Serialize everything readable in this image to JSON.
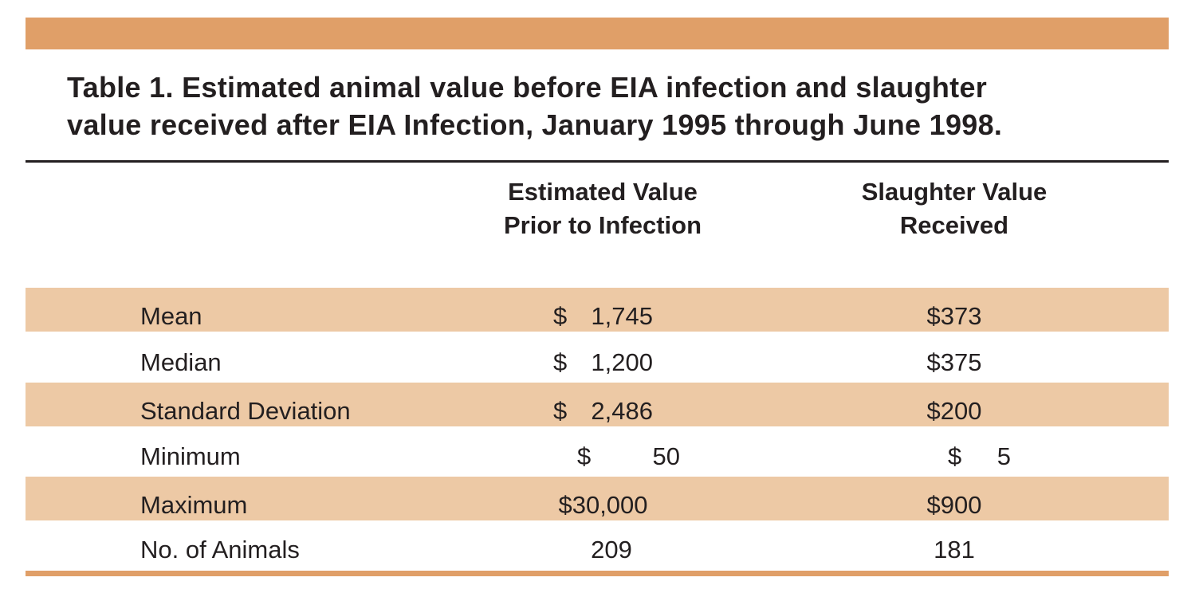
{
  "colors": {
    "band": "#e09f68",
    "shaded_row": "#edc9a5",
    "text": "#231f20"
  },
  "title": {
    "line1": "Table 1.  Estimated animal value before EIA infection and slaughter",
    "line2": "value received after EIA Infection, January 1995 through June 1998."
  },
  "columns": {
    "estimated": {
      "line1": "Estimated Value",
      "line2": "Prior to Infection"
    },
    "slaughter": {
      "line1": "Slaughter Value",
      "line2": "Received"
    }
  },
  "rows": [
    {
      "label": "Mean",
      "est_cur": "$",
      "est_amt": "1,745",
      "sla": "$373"
    },
    {
      "label": "Median",
      "est_cur": "$",
      "est_amt": "1,200",
      "sla": "$375"
    },
    {
      "label": "Standard Deviation",
      "est_cur": "$",
      "est_amt": "2,486",
      "sla": "$200"
    },
    {
      "label": "Minimum",
      "est_cur": "$",
      "est_amt": "50",
      "sla_cur": "$",
      "sla_amt": "5"
    },
    {
      "label": "Maximum",
      "est": "$30,000",
      "sla": "$900"
    },
    {
      "label": "No. of Animals",
      "est": "209",
      "sla": "181"
    }
  ]
}
